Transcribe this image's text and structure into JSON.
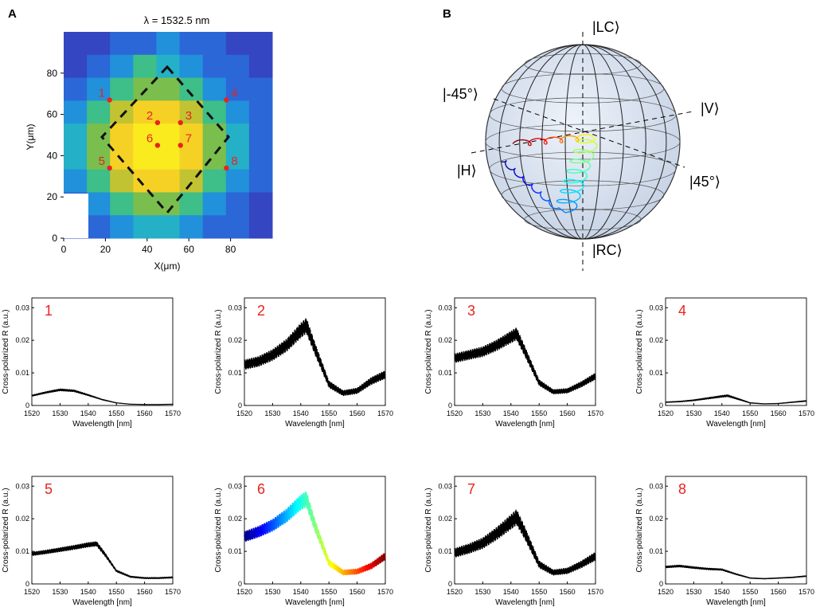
{
  "figure": {
    "panel_a_label": "A",
    "panel_b_label": "B"
  },
  "heatmap": {
    "title": "λ = 1532.5 nm",
    "xlabel": "X(μm)",
    "ylabel": "Y(μm)",
    "x_ticks": [
      "0",
      "20",
      "40",
      "60",
      "80"
    ],
    "y_ticks": [
      "0",
      "20",
      "40",
      "60",
      "80"
    ],
    "points": [
      {
        "label": "1",
        "x": 22,
        "y": 67
      },
      {
        "label": "2",
        "x": 45,
        "y": 56
      },
      {
        "label": "3",
        "x": 56,
        "y": 56
      },
      {
        "label": "4",
        "x": 78,
        "y": 67
      },
      {
        "label": "5",
        "x": 22,
        "y": 34
      },
      {
        "label": "6",
        "x": 45,
        "y": 45
      },
      {
        "label": "7",
        "x": 56,
        "y": 45
      },
      {
        "label": "8",
        "x": 78,
        "y": 34
      }
    ]
  },
  "sphere": {
    "labels": {
      "lc": "|LC⟩",
      "rc": "|RC⟩",
      "h": "|H⟩",
      "v": "|V⟩",
      "m45": "|-45°⟩",
      "p45": "|45°⟩"
    }
  },
  "chart_data": [
    {
      "type": "heatmap",
      "title": "λ = 1532.5 nm",
      "xlabel": "X(μm)",
      "ylabel": "Y(μm)",
      "xlim": [
        0,
        100
      ],
      "ylim": [
        0,
        100
      ],
      "grid_rows_top_to_bottom": [
        [
          1,
          1,
          2,
          2,
          3,
          2,
          2,
          1,
          1
        ],
        [
          1,
          2,
          3,
          5,
          4,
          3,
          2,
          2,
          1
        ],
        [
          2,
          3,
          5,
          6,
          6,
          5,
          3,
          2,
          2
        ],
        [
          3,
          5,
          7,
          8,
          8,
          7,
          5,
          3,
          2
        ],
        [
          4,
          6,
          8,
          9,
          9,
          8,
          6,
          4,
          2
        ],
        [
          4,
          6,
          8,
          9,
          9,
          8,
          6,
          4,
          2
        ],
        [
          3,
          5,
          7,
          8,
          8,
          7,
          5,
          3,
          2
        ],
        [
          2,
          3,
          5,
          6,
          6,
          5,
          3,
          2,
          1
        ],
        [
          1,
          2,
          3,
          4,
          4,
          3,
          2,
          2,
          1
        ]
      ]
    },
    {
      "type": "line",
      "panel": "1",
      "xlabel": "Wavelength [nm]",
      "ylabel": "Cross-polarized R (a.u.)",
      "xlim": [
        1520,
        1570
      ],
      "ylim": [
        0,
        0.033
      ],
      "x_ticks": [
        "1520",
        "1530",
        "1540",
        "1550",
        "1560",
        "1570"
      ],
      "y_ticks": [
        "0",
        "0.01",
        "0.02",
        "0.03"
      ],
      "x": [
        1520,
        1525,
        1530,
        1535,
        1540,
        1545,
        1550,
        1555,
        1560,
        1565,
        1570
      ],
      "values": [
        0.003,
        0.004,
        0.0048,
        0.0045,
        0.0032,
        0.0018,
        0.0008,
        0.0004,
        0.0003,
        0.0003,
        0.0004
      ],
      "ripple": 0.0004,
      "colored": false
    },
    {
      "type": "line",
      "panel": "2",
      "xlabel": "Wavelength [nm]",
      "ylabel": "Cross-polarized R (a.u.)",
      "xlim": [
        1520,
        1570
      ],
      "ylim": [
        0,
        0.033
      ],
      "x_ticks": [
        "1520",
        "1530",
        "1540",
        "1550",
        "1560",
        "1570"
      ],
      "y_ticks": [
        "0",
        "0.01",
        "0.02",
        "0.03"
      ],
      "x": [
        1520,
        1525,
        1530,
        1535,
        1540,
        1542,
        1545,
        1550,
        1555,
        1560,
        1565,
        1570
      ],
      "values": [
        0.0125,
        0.0135,
        0.0155,
        0.0185,
        0.023,
        0.0245,
        0.0175,
        0.0065,
        0.0038,
        0.0045,
        0.0075,
        0.0095
      ],
      "ripple": 0.0025,
      "colored": false
    },
    {
      "type": "line",
      "panel": "3",
      "xlabel": "Wavelength [nm]",
      "ylabel": "Cross-polarized R (a.u.)",
      "xlim": [
        1520,
        1570
      ],
      "ylim": [
        0,
        0.033
      ],
      "x_ticks": [
        "1520",
        "1530",
        "1540",
        "1550",
        "1560",
        "1570"
      ],
      "y_ticks": [
        "0",
        "0.01",
        "0.02",
        "0.03"
      ],
      "x": [
        1520,
        1525,
        1530,
        1535,
        1540,
        1542,
        1545,
        1550,
        1555,
        1560,
        1565,
        1570
      ],
      "values": [
        0.0145,
        0.0155,
        0.0165,
        0.0185,
        0.021,
        0.022,
        0.0165,
        0.007,
        0.0042,
        0.0045,
        0.0065,
        0.009
      ],
      "ripple": 0.002,
      "colored": false
    },
    {
      "type": "line",
      "panel": "4",
      "xlabel": "Wavelength [nm]",
      "ylabel": "Cross-polarized R (a.u.)",
      "xlim": [
        1520,
        1570
      ],
      "ylim": [
        0,
        0.033
      ],
      "x_ticks": [
        "1520",
        "1530",
        "1540",
        "1550",
        "1560",
        "1570"
      ],
      "y_ticks": [
        "0",
        "0.01",
        "0.02",
        "0.03"
      ],
      "x": [
        1520,
        1525,
        1530,
        1535,
        1540,
        1542,
        1545,
        1550,
        1555,
        1560,
        1565,
        1570
      ],
      "values": [
        0.001,
        0.0012,
        0.0016,
        0.0022,
        0.0028,
        0.003,
        0.0022,
        0.0008,
        0.0005,
        0.0006,
        0.001,
        0.0014
      ],
      "ripple": 0.0004,
      "colored": false
    },
    {
      "type": "line",
      "panel": "5",
      "xlabel": "Wavelength [nm]",
      "ylabel": "Cross-polarized R (a.u.)",
      "xlim": [
        1520,
        1570
      ],
      "ylim": [
        0,
        0.033
      ],
      "x_ticks": [
        "1520",
        "1530",
        "1540",
        "1550",
        "1560",
        "1570"
      ],
      "y_ticks": [
        "0",
        "0.01",
        "0.02",
        "0.03"
      ],
      "x": [
        1520,
        1525,
        1530,
        1535,
        1540,
        1543,
        1546,
        1550,
        1555,
        1560,
        1565,
        1570
      ],
      "values": [
        0.0092,
        0.0098,
        0.0105,
        0.0112,
        0.012,
        0.0123,
        0.009,
        0.004,
        0.0022,
        0.0018,
        0.0018,
        0.002
      ],
      "ripple": 0.0008,
      "colored": false
    },
    {
      "type": "line",
      "panel": "6",
      "xlabel": "Wavelength [nm]",
      "ylabel": "Cross-polarized R (a.u.)",
      "xlim": [
        1520,
        1570
      ],
      "ylim": [
        0,
        0.033
      ],
      "x_ticks": [
        "1520",
        "1530",
        "1540",
        "1550",
        "1560",
        "1570"
      ],
      "y_ticks": [
        "0",
        "0.01",
        "0.02",
        "0.03"
      ],
      "x": [
        1520,
        1525,
        1530,
        1535,
        1540,
        1542,
        1545,
        1550,
        1555,
        1560,
        1565,
        1570
      ],
      "values": [
        0.0145,
        0.016,
        0.018,
        0.021,
        0.025,
        0.026,
        0.018,
        0.0065,
        0.0035,
        0.0038,
        0.0055,
        0.0085
      ],
      "ripple": 0.0025,
      "colored": true
    },
    {
      "type": "line",
      "panel": "7",
      "xlabel": "Wavelength [nm]",
      "ylabel": "Cross-polarized R (a.u.)",
      "xlim": [
        1520,
        1570
      ],
      "ylim": [
        0,
        0.033
      ],
      "x_ticks": [
        "1520",
        "1530",
        "1540",
        "1550",
        "1560",
        "1570"
      ],
      "y_ticks": [
        "0",
        "0.01",
        "0.02",
        "0.03"
      ],
      "x": [
        1520,
        1525,
        1530,
        1535,
        1540,
        1542,
        1545,
        1550,
        1555,
        1560,
        1565,
        1570
      ],
      "values": [
        0.0095,
        0.0108,
        0.0125,
        0.0155,
        0.019,
        0.0205,
        0.0155,
        0.006,
        0.0035,
        0.004,
        0.006,
        0.0085
      ],
      "ripple": 0.0025,
      "colored": false
    },
    {
      "type": "line",
      "panel": "8",
      "xlabel": "Wavelength [nm]",
      "ylabel": "Cross-polarized R (a.u.)",
      "xlim": [
        1520,
        1570
      ],
      "ylim": [
        0,
        0.033
      ],
      "x_ticks": [
        "1520",
        "1530",
        "1540",
        "1550",
        "1560",
        "1570"
      ],
      "y_ticks": [
        "0",
        "0.01",
        "0.02",
        "0.03"
      ],
      "x": [
        1520,
        1525,
        1530,
        1535,
        1540,
        1545,
        1550,
        1555,
        1560,
        1565,
        1570
      ],
      "values": [
        0.0052,
        0.0055,
        0.005,
        0.0046,
        0.0044,
        0.003,
        0.0018,
        0.0016,
        0.0018,
        0.002,
        0.0024
      ],
      "ripple": 0.0004,
      "colored": false
    }
  ]
}
